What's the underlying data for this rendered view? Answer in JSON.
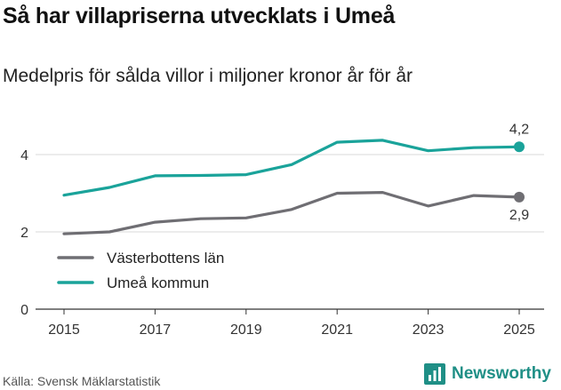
{
  "header": {
    "title": "Så har villapriserna utvecklats i Umeå",
    "subtitle": "Medelpris för sålda villor i miljoner kronor år för år"
  },
  "footer": {
    "source": "Källa: Svensk Mäklarstatistik",
    "brand": "Newsworthy",
    "brand_color": "#1f8f86"
  },
  "chart_data": {
    "type": "line",
    "title": "Så har villapriserna utvecklats i Umeå",
    "subtitle": "Medelpris för sålda villor i miljoner kronor år för år",
    "xlabel": "",
    "ylabel": "",
    "x": [
      2015,
      2016,
      2017,
      2018,
      2019,
      2020,
      2021,
      2022,
      2023,
      2024,
      2025
    ],
    "x_ticks": [
      "2015",
      "2017",
      "2019",
      "2021",
      "2023",
      "2025"
    ],
    "y_ticks": [
      "0",
      "2",
      "4"
    ],
    "ylim": [
      0,
      4.8
    ],
    "grid": true,
    "legend_position": "bottom-left",
    "series": [
      {
        "name": "Västerbottens län",
        "color": "#6f6e73",
        "values": [
          1.95,
          2.0,
          2.25,
          2.34,
          2.36,
          2.58,
          3.0,
          3.02,
          2.67,
          2.94,
          2.9
        ],
        "end_label": "2,9"
      },
      {
        "name": "Umeå kommun",
        "color": "#1aa39a",
        "values": [
          2.95,
          3.15,
          3.45,
          3.46,
          3.48,
          3.74,
          4.32,
          4.37,
          4.1,
          4.18,
          4.2
        ],
        "end_label": "4,2"
      }
    ]
  }
}
